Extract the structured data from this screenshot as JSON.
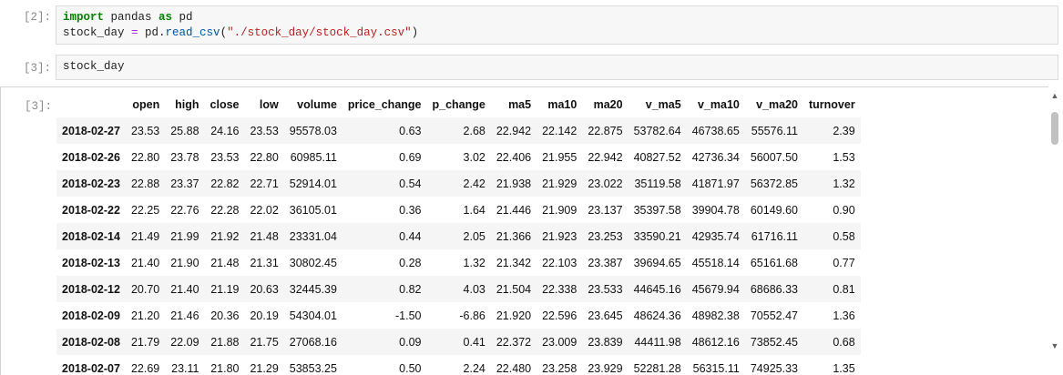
{
  "cells": [
    {
      "prompt": "[2]:",
      "code": {
        "kw_import": "import",
        "module": " pandas ",
        "kw_as": "as",
        "alias": " pd",
        "line2_var": "stock_day ",
        "line2_eq": "=",
        "line2_obj": " pd.",
        "line2_fn": "read_csv",
        "line2_open": "(",
        "line2_str": "\"./stock_day/stock_day.csv\"",
        "line2_close": ")"
      }
    },
    {
      "prompt": "[3]:",
      "code": "stock_day"
    }
  ],
  "output": {
    "prompt": "[3]:",
    "columns": [
      "open",
      "high",
      "close",
      "low",
      "volume",
      "price_change",
      "p_change",
      "ma5",
      "ma10",
      "ma20",
      "v_ma5",
      "v_ma10",
      "v_ma20",
      "turnover"
    ],
    "rows": [
      {
        "index": "2018-02-27",
        "values": [
          "23.53",
          "25.88",
          "24.16",
          "23.53",
          "95578.03",
          "0.63",
          "2.68",
          "22.942",
          "22.142",
          "22.875",
          "53782.64",
          "46738.65",
          "55576.11",
          "2.39"
        ]
      },
      {
        "index": "2018-02-26",
        "values": [
          "22.80",
          "23.78",
          "23.53",
          "22.80",
          "60985.11",
          "0.69",
          "3.02",
          "22.406",
          "21.955",
          "22.942",
          "40827.52",
          "42736.34",
          "56007.50",
          "1.53"
        ]
      },
      {
        "index": "2018-02-23",
        "values": [
          "22.88",
          "23.37",
          "22.82",
          "22.71",
          "52914.01",
          "0.54",
          "2.42",
          "21.938",
          "21.929",
          "23.022",
          "35119.58",
          "41871.97",
          "56372.85",
          "1.32"
        ]
      },
      {
        "index": "2018-02-22",
        "values": [
          "22.25",
          "22.76",
          "22.28",
          "22.02",
          "36105.01",
          "0.36",
          "1.64",
          "21.446",
          "21.909",
          "23.137",
          "35397.58",
          "39904.78",
          "60149.60",
          "0.90"
        ]
      },
      {
        "index": "2018-02-14",
        "values": [
          "21.49",
          "21.99",
          "21.92",
          "21.48",
          "23331.04",
          "0.44",
          "2.05",
          "21.366",
          "21.923",
          "23.253",
          "33590.21",
          "42935.74",
          "61716.11",
          "0.58"
        ]
      },
      {
        "index": "2018-02-13",
        "values": [
          "21.40",
          "21.90",
          "21.48",
          "21.31",
          "30802.45",
          "0.28",
          "1.32",
          "21.342",
          "22.103",
          "23.387",
          "39694.65",
          "45518.14",
          "65161.68",
          "0.77"
        ]
      },
      {
        "index": "2018-02-12",
        "values": [
          "20.70",
          "21.40",
          "21.19",
          "20.63",
          "32445.39",
          "0.82",
          "4.03",
          "21.504",
          "22.338",
          "23.533",
          "44645.16",
          "45679.94",
          "68686.33",
          "0.81"
        ]
      },
      {
        "index": "2018-02-09",
        "values": [
          "21.20",
          "21.46",
          "20.36",
          "20.19",
          "54304.01",
          "-1.50",
          "-6.86",
          "21.920",
          "22.596",
          "23.645",
          "48624.36",
          "48982.38",
          "70552.47",
          "1.36"
        ]
      },
      {
        "index": "2018-02-08",
        "values": [
          "21.79",
          "22.09",
          "21.88",
          "21.75",
          "27068.16",
          "0.09",
          "0.41",
          "22.372",
          "23.009",
          "23.839",
          "44411.98",
          "48612.16",
          "73852.45",
          "0.68"
        ]
      },
      {
        "index": "2018-02-07",
        "values": [
          "22.69",
          "23.11",
          "21.80",
          "21.29",
          "53853.25",
          "0.50",
          "2.24",
          "22.480",
          "23.258",
          "23.929",
          "52281.28",
          "56315.11",
          "74925.33",
          "1.35"
        ]
      }
    ]
  },
  "scrollbar": {
    "up_glyph": "▲",
    "down_glyph": "▼"
  }
}
